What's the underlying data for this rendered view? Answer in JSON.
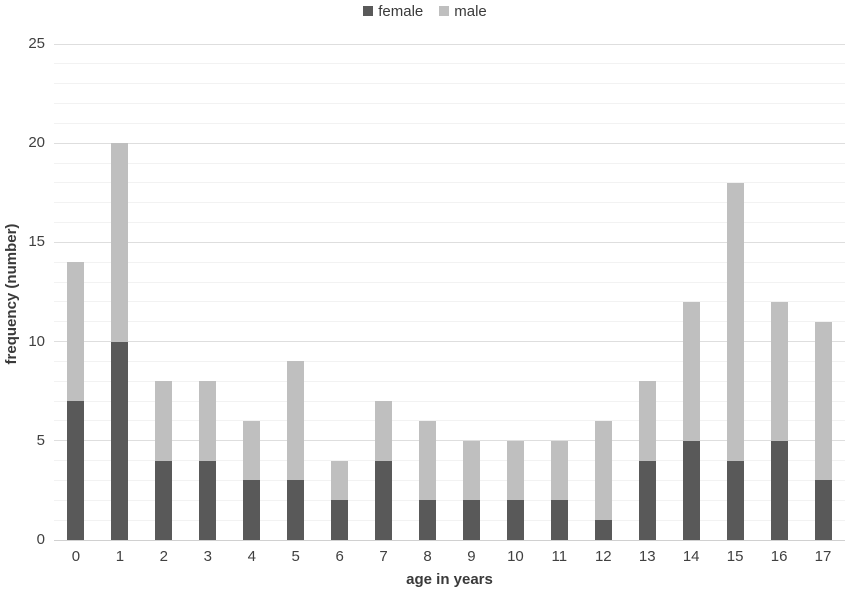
{
  "chart_data": {
    "type": "bar",
    "stacked": true,
    "title": "",
    "xlabel": "age in years",
    "ylabel": "frequency (number)",
    "categories": [
      "0",
      "1",
      "2",
      "3",
      "4",
      "5",
      "6",
      "7",
      "8",
      "9",
      "10",
      "11",
      "12",
      "13",
      "14",
      "15",
      "16",
      "17"
    ],
    "series": [
      {
        "name": "female",
        "color": "#595959",
        "values": [
          7,
          10,
          4,
          4,
          3,
          3,
          2,
          4,
          2,
          2,
          2,
          2,
          1,
          4,
          5,
          4,
          5,
          3
        ]
      },
      {
        "name": "male",
        "color": "#bfbfbf",
        "values": [
          7,
          10,
          4,
          4,
          3,
          6,
          2,
          3,
          4,
          3,
          3,
          3,
          5,
          4,
          7,
          14,
          7,
          8
        ]
      }
    ],
    "totals": [
      14,
      20,
      8,
      8,
      6,
      9,
      4,
      7,
      6,
      5,
      5,
      5,
      6,
      8,
      12,
      18,
      12,
      11
    ],
    "ylim": [
      0,
      25
    ],
    "y_major_ticks": [
      0,
      5,
      10,
      15,
      20,
      25
    ],
    "y_minor_step": 1,
    "legend_position": "top-center",
    "grid": "horizontal-major-and-minor"
  },
  "colors": {
    "female": "#595959",
    "male": "#bfbfbf",
    "major_grid": "#dedede",
    "minor_grid": "#f2f2f2",
    "axis_line": "#d0d0d0",
    "text": "#404040"
  }
}
